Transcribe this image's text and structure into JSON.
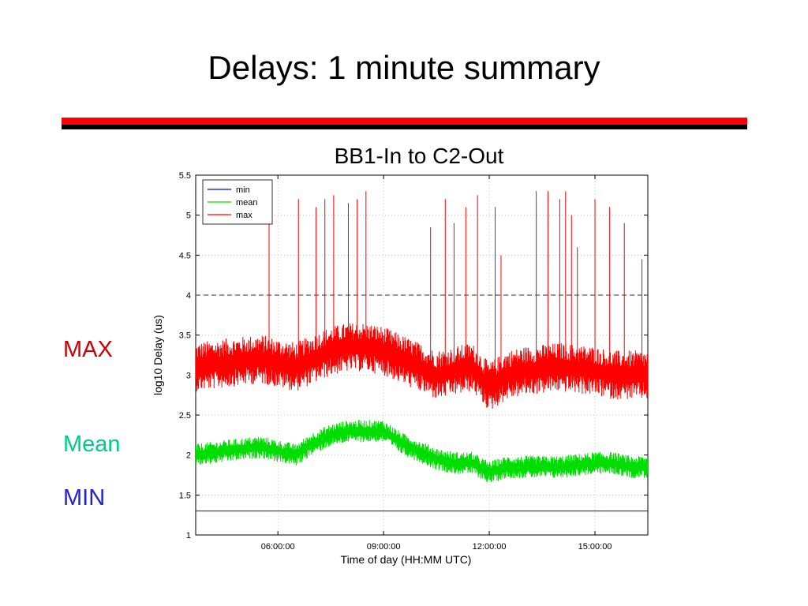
{
  "slide": {
    "title": "Delays: 1 minute summary"
  },
  "side_labels": {
    "max": "MAX",
    "mean": "Mean",
    "min": "MIN"
  },
  "colors": {
    "divider_top": "#ff0000",
    "divider_bottom": "#000000",
    "max": "#ff0000",
    "mean": "#00dd00",
    "min": "#0000ff",
    "label_max": "#cc0000",
    "label_mean": "#00cc88",
    "label_min": "#2222cc"
  },
  "chart_data": {
    "type": "line",
    "title": "BB1-In to C2-Out",
    "xlabel": "Time of day (HH:MM UTC)",
    "ylabel": "log10 Delay (us)",
    "xlim": [
      "03:40",
      "16:30"
    ],
    "ylim": [
      1,
      5.5
    ],
    "x_ticks": [
      "06:00:00",
      "09:00:00",
      "12:00:00",
      "15:00:00"
    ],
    "y_ticks": [
      "1",
      "1.5",
      "2",
      "2.5",
      "3",
      "3.5",
      "4",
      "4.5",
      "5",
      "5.5"
    ],
    "grid": true,
    "reference_line": 4,
    "legend_position": "top-left",
    "series": [
      {
        "name": "min",
        "color": "#0000ff",
        "x": [
          "03:40",
          "16:30"
        ],
        "values": [
          1.3,
          1.3
        ]
      },
      {
        "name": "mean",
        "color": "#00dd00",
        "x": [
          "03:40",
          "04:30",
          "05:30",
          "06:30",
          "07:00",
          "07:30",
          "08:00",
          "08:30",
          "09:00",
          "09:30",
          "10:00",
          "10:30",
          "11:00",
          "11:30",
          "12:00",
          "12:30",
          "13:00",
          "14:00",
          "15:00",
          "15:30",
          "16:00",
          "16:30"
        ],
        "values": [
          2.0,
          2.05,
          2.1,
          2.0,
          2.15,
          2.25,
          2.3,
          2.3,
          2.3,
          2.15,
          2.05,
          1.95,
          1.9,
          1.9,
          1.78,
          1.85,
          1.85,
          1.85,
          1.9,
          1.9,
          1.85,
          1.85
        ]
      },
      {
        "name": "max",
        "color": "#ff0000",
        "x": [
          "03:40",
          "04:30",
          "05:30",
          "06:30",
          "07:00",
          "07:30",
          "08:00",
          "08:30",
          "09:00",
          "09:30",
          "10:00",
          "10:30",
          "11:00",
          "11:30",
          "12:00",
          "12:30",
          "13:00",
          "14:00",
          "15:00",
          "15:30",
          "16:00",
          "16:30"
        ],
        "values": [
          3.1,
          3.15,
          3.2,
          3.1,
          3.2,
          3.3,
          3.35,
          3.35,
          3.3,
          3.2,
          3.1,
          3.0,
          3.05,
          3.1,
          2.85,
          3.0,
          3.05,
          3.1,
          3.05,
          3.0,
          3.0,
          3.0
        ]
      }
    ],
    "max_spikes": [
      {
        "x": "05:45",
        "y": 5.2
      },
      {
        "x": "06:35",
        "y": 5.2
      },
      {
        "x": "07:05",
        "y": 5.1
      },
      {
        "x": "07:20",
        "y": 5.2
      },
      {
        "x": "07:35",
        "y": 5.25
      },
      {
        "x": "08:00",
        "y": 5.15
      },
      {
        "x": "08:15",
        "y": 5.2
      },
      {
        "x": "08:30",
        "y": 5.3
      },
      {
        "x": "10:20",
        "y": 4.85
      },
      {
        "x": "10:45",
        "y": 5.2
      },
      {
        "x": "11:00",
        "y": 4.9
      },
      {
        "x": "11:20",
        "y": 5.1
      },
      {
        "x": "11:40",
        "y": 5.25
      },
      {
        "x": "12:10",
        "y": 5.1
      },
      {
        "x": "12:20",
        "y": 4.5
      },
      {
        "x": "13:20",
        "y": 5.3
      },
      {
        "x": "13:40",
        "y": 5.3
      },
      {
        "x": "14:00",
        "y": 5.2
      },
      {
        "x": "14:10",
        "y": 5.3
      },
      {
        "x": "14:20",
        "y": 5.0
      },
      {
        "x": "14:30",
        "y": 4.6
      },
      {
        "x": "15:00",
        "y": 5.2
      },
      {
        "x": "15:25",
        "y": 5.1
      },
      {
        "x": "15:50",
        "y": 4.9
      },
      {
        "x": "16:20",
        "y": 4.45
      }
    ]
  }
}
